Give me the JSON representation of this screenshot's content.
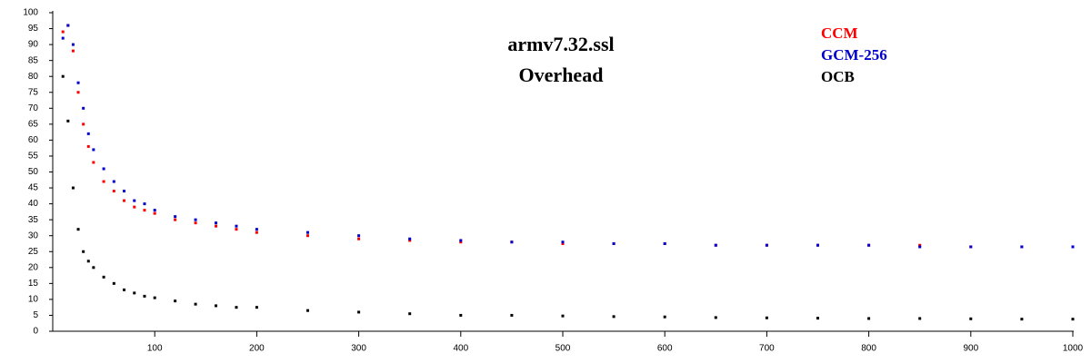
{
  "chart_data": {
    "type": "scatter",
    "title": "armv7.32.ssl",
    "subtitle": "Overhead",
    "x": [
      10,
      15,
      20,
      25,
      30,
      35,
      40,
      50,
      60,
      70,
      80,
      90,
      100,
      120,
      140,
      160,
      180,
      200,
      250,
      300,
      350,
      400,
      450,
      500,
      550,
      600,
      650,
      700,
      750,
      800,
      850,
      900,
      950,
      1000
    ],
    "series": [
      {
        "name": "CCM",
        "color": "#ff0000",
        "values": [
          94,
          96,
          88,
          75,
          65,
          58,
          53,
          47,
          44,
          41,
          39,
          38,
          37,
          35,
          34,
          33,
          32,
          31,
          30,
          29,
          28.5,
          28,
          28,
          27.5,
          27.5,
          27.5,
          27,
          27,
          27,
          27,
          27,
          26.5,
          26.5,
          26.5
        ]
      },
      {
        "name": "GCM-256",
        "color": "#0000cc",
        "values": [
          92,
          96,
          90,
          78,
          70,
          62,
          57,
          51,
          47,
          44,
          41,
          40,
          38,
          36,
          35,
          34,
          33,
          32,
          31,
          30,
          29,
          28.5,
          28,
          28,
          27.5,
          27.5,
          27,
          27,
          27,
          27,
          26.5,
          26.5,
          26.5,
          26.5
        ]
      },
      {
        "name": "OCB",
        "color": "#000000",
        "values": [
          80,
          66,
          45,
          32,
          25,
          22,
          20,
          17,
          15,
          13,
          12,
          11,
          10.5,
          9.5,
          8.5,
          8,
          7.5,
          7.5,
          6.5,
          6,
          5.5,
          5,
          5,
          4.8,
          4.6,
          4.5,
          4.3,
          4.2,
          4.1,
          4,
          4,
          3.9,
          3.8,
          3.8
        ]
      }
    ],
    "xlim": [
      0,
      1000
    ],
    "xticks": [
      100,
      200,
      300,
      400,
      500,
      600,
      700,
      800,
      900,
      1000
    ],
    "ylim": [
      0,
      100
    ],
    "yticks": [
      0,
      5,
      10,
      15,
      20,
      25,
      30,
      35,
      40,
      45,
      50,
      55,
      60,
      65,
      70,
      75,
      80,
      85,
      90,
      95,
      100
    ]
  }
}
